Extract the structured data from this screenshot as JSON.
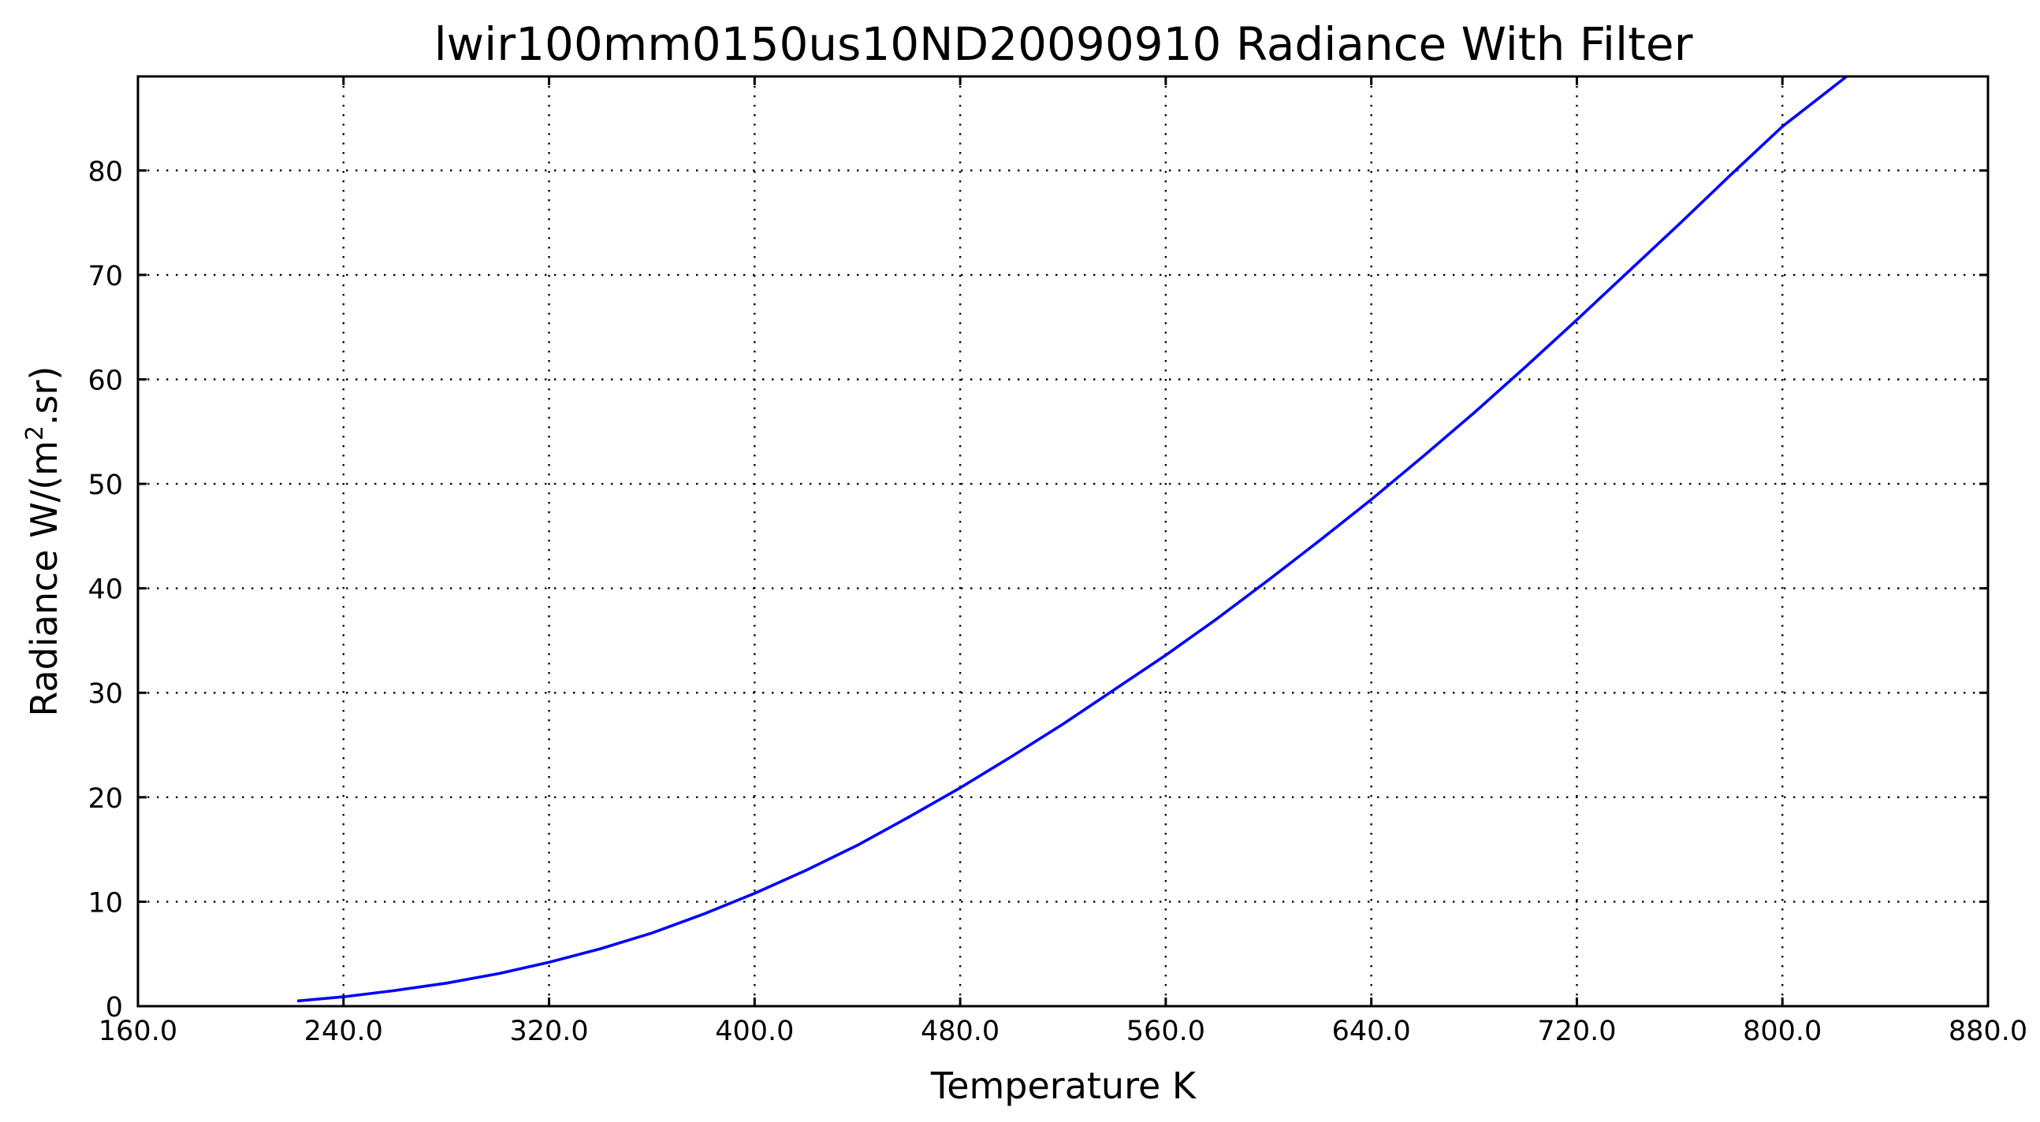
{
  "chart_data": {
    "type": "line",
    "title": "lwir100mm0150us10ND20090910 Radiance With Filter",
    "xlabel": "Temperature K",
    "ylabel_main": "Radiance W/(m",
    "ylabel_sup": "2",
    "ylabel_tail": ".sr)",
    "xlim": [
      160,
      880
    ],
    "ylim": [
      0,
      89
    ],
    "xticks": [
      160,
      240,
      320,
      400,
      480,
      560,
      640,
      720,
      800,
      880
    ],
    "xtick_labels": [
      "160.0",
      "240.0",
      "320.0",
      "400.0",
      "480.0",
      "560.0",
      "640.0",
      "720.0",
      "800.0",
      "880.0"
    ],
    "yticks": [
      0,
      10,
      20,
      30,
      40,
      50,
      60,
      70,
      80
    ],
    "ytick_labels": [
      "0",
      "10",
      "20",
      "30",
      "40",
      "50",
      "60",
      "70",
      "80"
    ],
    "grid": true,
    "series": [
      {
        "color": "#0000ff",
        "x": [
          222,
          240,
          260,
          280,
          300,
          320,
          340,
          360,
          380,
          400,
          420,
          440,
          460,
          480,
          500,
          520,
          540,
          560,
          580,
          600,
          620,
          640,
          660,
          680,
          700,
          720,
          740,
          760,
          780,
          800,
          825
        ],
        "y": [
          0.5,
          0.9,
          1.5,
          2.2,
          3.1,
          4.2,
          5.5,
          7.0,
          8.8,
          10.8,
          13.0,
          15.4,
          18.1,
          20.9,
          23.9,
          27.0,
          30.3,
          33.6,
          37.1,
          40.8,
          44.6,
          48.5,
          52.6,
          56.8,
          61.2,
          65.7,
          70.3,
          74.9,
          79.6,
          84.2,
          89.0
        ]
      }
    ]
  }
}
